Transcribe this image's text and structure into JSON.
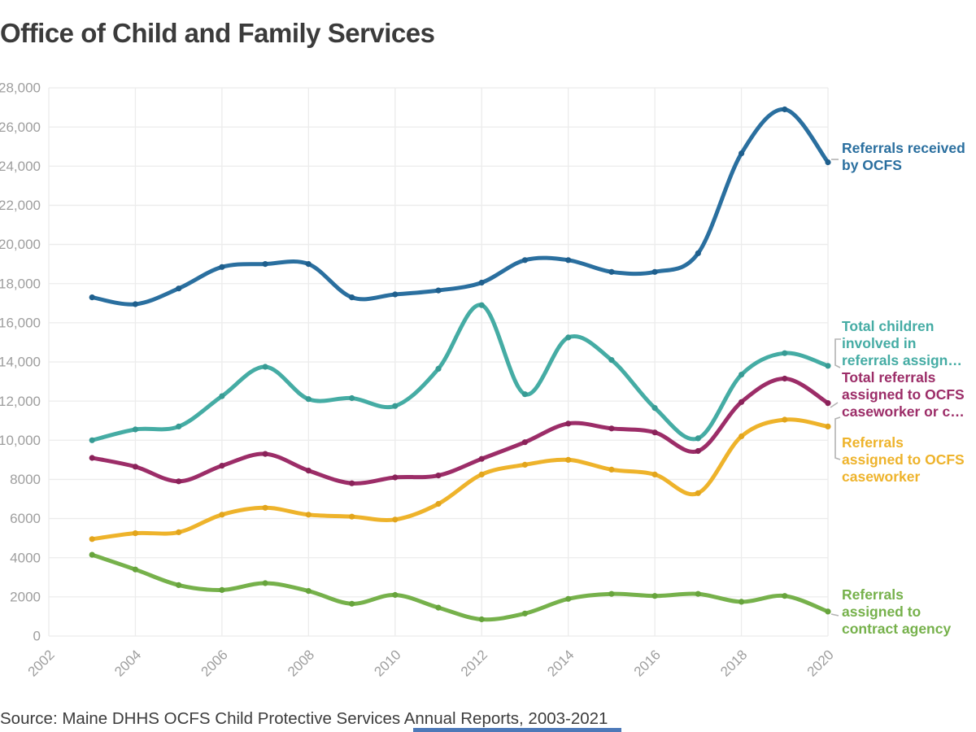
{
  "page": {
    "title": "Office of Child and Family Services",
    "source": "Source: Maine DHHS OCFS Child Protective Services Annual Reports, 2003-2021"
  },
  "colors": {
    "title": "#3b3b3b",
    "axis_label": "#9e9e9e",
    "grid": "#ececec",
    "source_text": "#3d3d3d",
    "leader": "#b3b3b3",
    "bottom_bar": "#4d79b8",
    "background": "#ffffff"
  },
  "chart_data": {
    "type": "line",
    "title": "Office of Child and Family Services",
    "grid": true,
    "legend_position": "right-margin",
    "x": [
      2003,
      2004,
      2005,
      2006,
      2007,
      2008,
      2009,
      2010,
      2011,
      2012,
      2013,
      2014,
      2015,
      2016,
      2017,
      2018,
      2019,
      2020
    ],
    "x_axis": {
      "range": [
        2002,
        2020
      ],
      "ticks": [
        2002,
        2004,
        2006,
        2008,
        2010,
        2012,
        2014,
        2016,
        2018,
        2020
      ],
      "labels": [
        "2002",
        "2004",
        "2006",
        "2008",
        "2010",
        "2012",
        "2014",
        "2016",
        "2018",
        "2020"
      ]
    },
    "y_axis": {
      "range": [
        0,
        28000
      ],
      "ticks": [
        28000,
        26000,
        24000,
        22000,
        20000,
        18000,
        16000,
        14000,
        12000,
        10000,
        8000,
        6000,
        4000,
        2000,
        0
      ],
      "labels": [
        "28,000",
        "26,000",
        "24,000",
        "22,000",
        "20,000",
        "18,000",
        "16,000",
        "14,000",
        "12,000",
        "10,000",
        "8000",
        "6000",
        "4000",
        "2000",
        "0"
      ]
    },
    "series": [
      {
        "name": "Referrals received by OCFS",
        "label_lines": [
          "Referrals received",
          "by OCFS"
        ],
        "color": "#2a6f9f",
        "marker_color": "#1f5f8d",
        "values": [
          17300,
          16950,
          17750,
          18850,
          19000,
          19000,
          17300,
          17450,
          17650,
          18050,
          19200,
          19200,
          18600,
          18600,
          19550,
          24650,
          26900,
          24200
        ]
      },
      {
        "name": "Total children involved in referrals assign…",
        "label_lines": [
          "Total children",
          "involved in",
          "referrals assign…"
        ],
        "color": "#45aca4",
        "marker_color": "#379b94",
        "values": [
          10000,
          10550,
          10700,
          12250,
          13750,
          12100,
          12150,
          11750,
          13650,
          16900,
          12350,
          15250,
          14100,
          11650,
          10100,
          13350,
          14450,
          13800
        ]
      },
      {
        "name": "Total referrals assigned to OCFS caseworker or c…",
        "label_lines": [
          "Total referrals",
          "assigned to OCFS",
          "caseworker or c…"
        ],
        "color": "#9c2d68",
        "marker_color": "#8a2259",
        "values": [
          9100,
          8650,
          7900,
          8700,
          9300,
          8450,
          7800,
          8100,
          8200,
          9050,
          9900,
          10850,
          10600,
          10400,
          9450,
          11950,
          13150,
          11900
        ]
      },
      {
        "name": "Referrals assigned to OCFS caseworker",
        "label_lines": [
          "Referrals",
          "assigned to OCFS",
          "caseworker"
        ],
        "color": "#eeb32b",
        "marker_color": "#e2a51c",
        "values": [
          4950,
          5250,
          5300,
          6200,
          6550,
          6200,
          6100,
          5950,
          6750,
          8250,
          8750,
          9000,
          8500,
          8250,
          7300,
          10200,
          11050,
          10700
        ]
      },
      {
        "name": "Referrals assigned to contract agency",
        "label_lines": [
          "Referrals",
          "assigned to",
          "contract agency"
        ],
        "color": "#76b14b",
        "marker_color": "#67a43c",
        "values": [
          4150,
          3400,
          2600,
          2350,
          2700,
          2300,
          1650,
          2100,
          1450,
          850,
          1150,
          1900,
          2150,
          2050,
          2150,
          1750,
          2050,
          1250
        ]
      }
    ]
  }
}
